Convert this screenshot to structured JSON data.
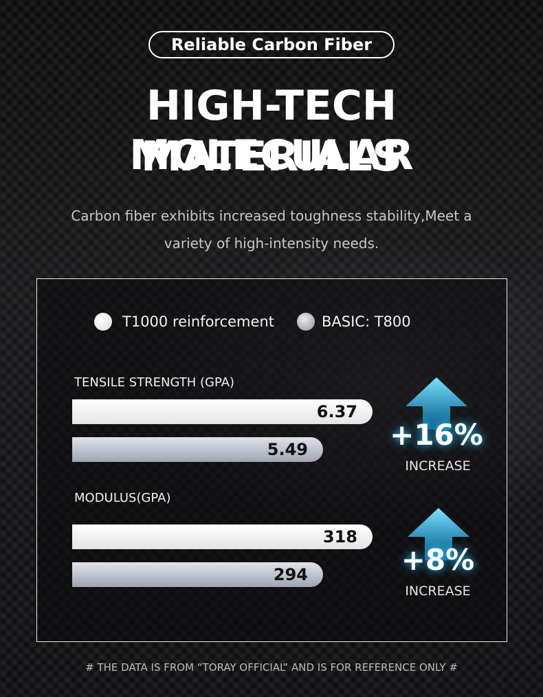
{
  "badge": "Reliable Carbon Fiber",
  "title_lines": [
    "HIGH-TECH MOLECULAR",
    "MATERIALS"
  ],
  "subtitle_lines": [
    "Carbon fiber exhibits increased toughness stability,Meet a",
    "variety of high-intensity needs."
  ],
  "legend": [
    "T1000 reinforcement",
    "BASIC: T800"
  ],
  "metrics": [
    {
      "label": "TENSILE STRENGTH (GPA)",
      "values": [
        6.37,
        5.49
      ],
      "change": "+16%",
      "change_label": "INCREASE"
    },
    {
      "label": "MODULUS(GPA)",
      "values": [
        318,
        294
      ],
      "change": "+8%",
      "change_label": "INCREASE"
    }
  ],
  "footnote": "# THE DATA IS FROM  “TORAY OFFICIAL”  AND IS FOR REFERENCE ONLY #"
}
